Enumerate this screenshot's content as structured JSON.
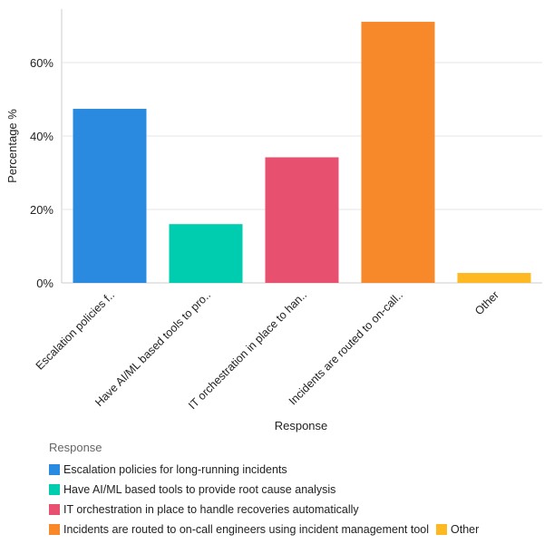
{
  "chart_data": {
    "type": "bar",
    "xlabel": "Response",
    "ylabel": "Percentage %",
    "ylim": [
      0,
      74
    ],
    "yticks": [
      "0%",
      "20%",
      "40%",
      "60%"
    ],
    "ytick_values": [
      0,
      20,
      40,
      60
    ],
    "grid": true,
    "categories": [
      "Escalation policies f..",
      "Have AI/ML based tools to pro..",
      "IT orchestration in place to han..",
      "Incidents are routed to on-call..",
      "Other"
    ],
    "values": [
      47.4,
      16.0,
      34.2,
      71.1,
      2.7
    ],
    "colors": [
      "#2a8ae0",
      "#00cdb0",
      "#e8506f",
      "#f7892b",
      "#fdb822"
    ],
    "legend": {
      "title": "Response",
      "placement": "bottom",
      "entries": [
        "Escalation policies for long-running incidents",
        "Have AI/ML based tools to provide root cause analysis",
        "IT orchestration in place to handle recoveries automatically",
        "Incidents are routed to on-call engineers using incident management tool",
        "Other"
      ]
    }
  }
}
